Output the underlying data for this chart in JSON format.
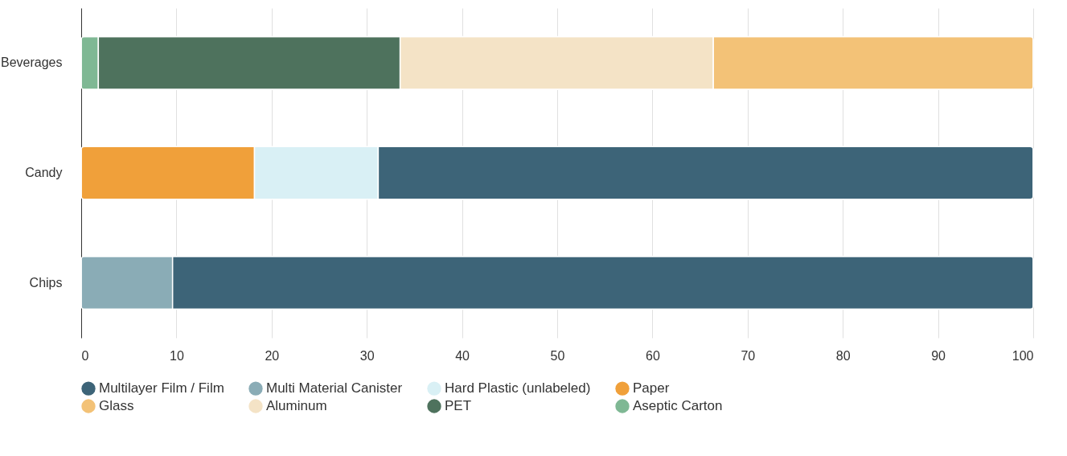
{
  "chart_data": {
    "type": "bar",
    "orientation": "horizontal",
    "stacked": true,
    "categories": [
      "Beverages",
      "Candy",
      "Chips"
    ],
    "series": [
      {
        "name": "Aseptic Carton",
        "color": "#7fb894",
        "values": [
          1.8,
          null,
          null
        ]
      },
      {
        "name": "PET",
        "color": "#4e725d",
        "values": [
          31.7,
          null,
          null
        ]
      },
      {
        "name": "Aluminum",
        "color": "#f4e3c6",
        "values": [
          32.9,
          null,
          null
        ]
      },
      {
        "name": "Glass",
        "color": "#f3c277",
        "values": [
          33.6,
          null,
          null
        ]
      },
      {
        "name": "Paper",
        "color": "#f0a03a",
        "values": [
          null,
          18.2,
          null
        ]
      },
      {
        "name": "Hard Plastic (unlabeled)",
        "color": "#d9f0f5",
        "values": [
          null,
          13.0,
          null
        ]
      },
      {
        "name": "Multi Material Canister",
        "color": "#8aacb6",
        "values": [
          null,
          null,
          9.6
        ]
      },
      {
        "name": "Multilayer Film / Film",
        "color": "#3d6478",
        "values": [
          null,
          68.8,
          90.4
        ]
      }
    ],
    "xlim": [
      0,
      100
    ],
    "xticks": [
      0,
      10,
      20,
      30,
      40,
      50,
      60,
      70,
      80,
      90,
      100
    ],
    "grid": "x",
    "legend": "bottom"
  }
}
